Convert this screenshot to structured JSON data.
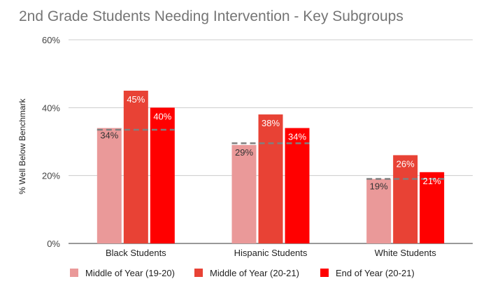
{
  "chart_data": {
    "type": "bar",
    "title": "2nd Grade Students Needing Intervention - Key Subgroups",
    "xlabel": "",
    "ylabel": "% Well Below Benchmark",
    "ylim": [
      0,
      60
    ],
    "yticks": [
      "0%",
      "20%",
      "40%",
      "60%"
    ],
    "ytick_values": [
      0,
      20,
      40,
      60
    ],
    "grid": true,
    "legend_position": "bottom",
    "categories": [
      "Black Students",
      "Hispanic Students",
      "White Students"
    ],
    "series": [
      {
        "name": "Middle of Year (19-20)",
        "values": [
          34,
          29,
          19
        ],
        "labels": [
          "34%",
          "29%",
          "19%"
        ],
        "color": "#ea9999",
        "label_color": "#333333"
      },
      {
        "name": "Middle of Year (20-21)",
        "values": [
          45,
          38,
          26
        ],
        "labels": [
          "45%",
          "38%",
          "26%"
        ],
        "color": "#e84235",
        "label_color": "#ffffff"
      },
      {
        "name": "End of Year (20-21)",
        "values": [
          40,
          34,
          21
        ],
        "labels": [
          "40%",
          "34%",
          "21%"
        ],
        "color": "#ff0000",
        "label_color": "#ffffff"
      }
    ],
    "reference_lines": {
      "style": "dashed",
      "color": "#808080",
      "values": [
        33.5,
        29.5,
        19
      ]
    }
  }
}
